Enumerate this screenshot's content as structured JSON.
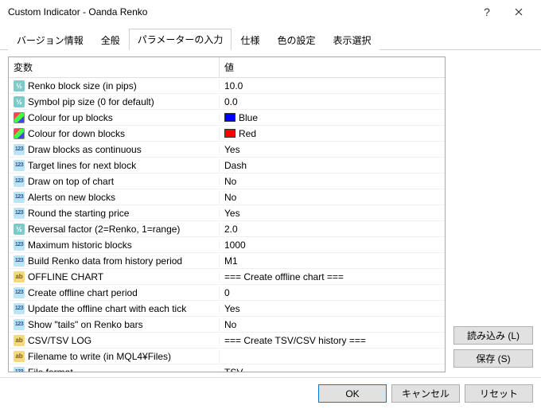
{
  "window": {
    "title": "Custom Indicator - Oanda Renko"
  },
  "tabs": [
    {
      "label": "バージョン情報"
    },
    {
      "label": "全般"
    },
    {
      "label": "パラメーターの入力"
    },
    {
      "label": "仕様"
    },
    {
      "label": "色の設定"
    },
    {
      "label": "表示選択"
    }
  ],
  "active_tab": 2,
  "columns": {
    "variable": "変数",
    "value": "値"
  },
  "params": [
    {
      "icon": "v",
      "name": "Renko block size (in pips)",
      "value": "10.0"
    },
    {
      "icon": "v",
      "name": "Symbol pip size (0 for default)",
      "value": "0.0"
    },
    {
      "icon": "color",
      "name": "Colour for up blocks",
      "value": "Blue",
      "swatch": "#0000ff"
    },
    {
      "icon": "color",
      "name": "Colour for down blocks",
      "value": "Red",
      "swatch": "#ff0000"
    },
    {
      "icon": "123",
      "name": "Draw blocks as continuous",
      "value": "Yes"
    },
    {
      "icon": "123",
      "name": "Target lines for next block",
      "value": "Dash"
    },
    {
      "icon": "123",
      "name": "Draw on top of chart",
      "value": "No"
    },
    {
      "icon": "123",
      "name": "Alerts on new blocks",
      "value": "No"
    },
    {
      "icon": "123",
      "name": "Round the starting price",
      "value": "Yes"
    },
    {
      "icon": "v",
      "name": "Reversal factor (2=Renko, 1=range)",
      "value": "2.0"
    },
    {
      "icon": "123",
      "name": "Maximum historic blocks",
      "value": "1000"
    },
    {
      "icon": "123",
      "name": "Build Renko data from history period",
      "value": "M1"
    },
    {
      "icon": "ab",
      "name": "OFFLINE CHART",
      "value": "=== Create offline chart  ==="
    },
    {
      "icon": "123",
      "name": "Create offline chart period",
      "value": "0"
    },
    {
      "icon": "123",
      "name": "Update the offline chart with each tick",
      "value": "Yes"
    },
    {
      "icon": "123",
      "name": "Show \"tails\" on Renko bars",
      "value": "No"
    },
    {
      "icon": "ab",
      "name": "CSV/TSV LOG",
      "value": "=== Create TSV/CSV history ==="
    },
    {
      "icon": "ab",
      "name": "Filename to write (in MQL4¥Files)",
      "value": ""
    },
    {
      "icon": "123",
      "name": "File format",
      "value": "TSV"
    }
  ],
  "buttons": {
    "load": "読み込み (L)",
    "save": "保存 (S)",
    "ok": "OK",
    "cancel": "キャンセル",
    "reset": "リセット"
  }
}
